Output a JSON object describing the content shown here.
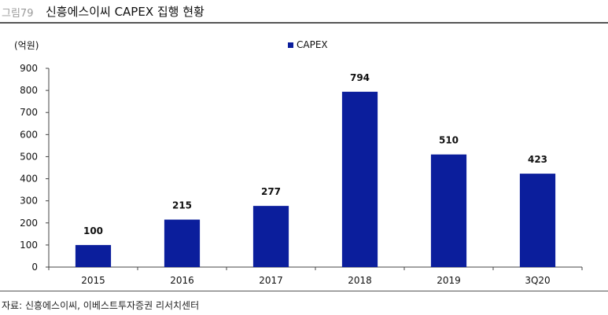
{
  "header": {
    "figure_number": "그림79",
    "title": "신흥에스이씨 CAPEX 집행 현황"
  },
  "source": "자료: 신흥에스이씨, 이베스트투자증권 리서치센터",
  "colors": {
    "bar": "#0b1e9c",
    "axis": "#444444"
  },
  "chart_data": {
    "type": "bar",
    "title": "신흥에스이씨 CAPEX 집행 현황",
    "unit_label": "(억원)",
    "categories": [
      "2015",
      "2016",
      "2017",
      "2018",
      "2019",
      "3Q20"
    ],
    "series": [
      {
        "name": "CAPEX",
        "values": [
          100,
          215,
          277,
          794,
          510,
          423
        ]
      }
    ],
    "value_labels": [
      "100",
      "215",
      "277",
      "794",
      "510",
      "423"
    ],
    "ylim": [
      0,
      900
    ],
    "yticks": [
      "0",
      "100",
      "200",
      "300",
      "400",
      "500",
      "600",
      "700",
      "800",
      "900"
    ],
    "xlabel": "",
    "ylabel": "",
    "legend_position": "top-center",
    "grid": false
  }
}
